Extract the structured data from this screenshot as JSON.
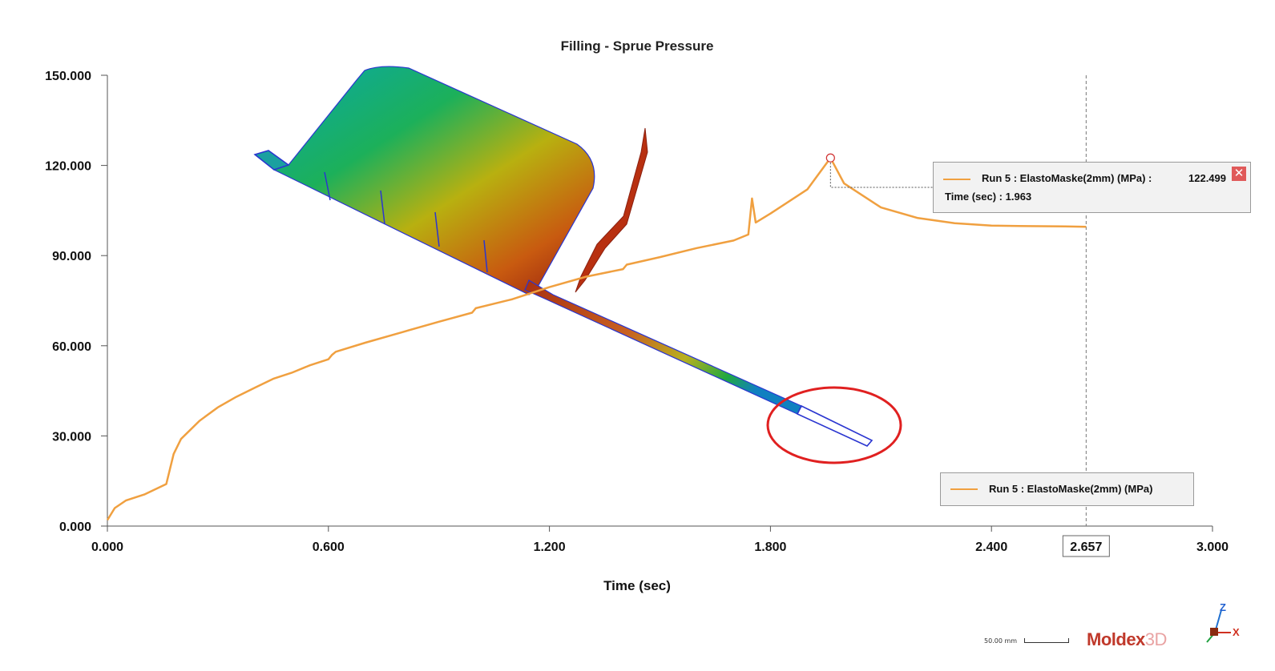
{
  "chart_data": {
    "type": "line",
    "title": "Filling - Sprue Pressure",
    "xlabel": "Time (sec)",
    "ylabel": "",
    "xlim": [
      0,
      3.0
    ],
    "ylim": [
      0,
      150
    ],
    "x_ticks": [
      "0.000",
      "0.600",
      "1.200",
      "1.800",
      "2.400",
      "3.000"
    ],
    "y_ticks": [
      "0.000",
      "30.000",
      "60.000",
      "90.000",
      "120.000",
      "150.000"
    ],
    "series": [
      {
        "name": "Run 5 : ElastoMaske(2mm) (MPa)",
        "color": "#f0a040",
        "x": [
          0.0,
          0.02,
          0.05,
          0.1,
          0.16,
          0.17,
          0.18,
          0.2,
          0.25,
          0.3,
          0.35,
          0.4,
          0.45,
          0.5,
          0.55,
          0.6,
          0.61,
          0.62,
          0.7,
          0.8,
          0.9,
          0.99,
          1.0,
          1.1,
          1.2,
          1.3,
          1.4,
          1.41,
          1.5,
          1.6,
          1.7,
          1.74,
          1.75,
          1.76,
          1.8,
          1.9,
          1.963,
          2.0,
          2.1,
          2.2,
          2.3,
          2.4,
          2.5,
          2.6,
          2.657
        ],
        "y": [
          2.0,
          6.0,
          8.5,
          10.5,
          14.0,
          19.0,
          24.0,
          29.0,
          35.0,
          39.5,
          43.0,
          46.0,
          49.0,
          51.0,
          53.5,
          55.5,
          57.0,
          58.0,
          61.0,
          64.5,
          68.0,
          71.0,
          72.5,
          75.5,
          79.5,
          83.0,
          85.5,
          87.0,
          89.5,
          92.5,
          95.0,
          97.0,
          109.0,
          101.0,
          104.0,
          112.0,
          122.499,
          114.0,
          106.0,
          102.5,
          100.8,
          100.0,
          99.8,
          99.7,
          99.6
        ]
      }
    ],
    "cursor_x": "2.657",
    "annotation": {
      "series_label": "Run 5 : ElastoMaske(2mm) (MPa) :",
      "value": "122.499",
      "time_label": "Time (sec) : 1.963",
      "x": 1.963,
      "y": 122.499
    },
    "legend": {
      "entry": "Run 5 : ElastoMaske(2mm) (MPa)",
      "placement": "bottom-right"
    },
    "grid": false
  },
  "overlay": {
    "scale_label": "50.00 mm",
    "logo_text": "Moldex",
    "logo_suffix": "3D",
    "axis_z": "Z",
    "axis_x": "X",
    "highlight_color": "#e02020"
  }
}
